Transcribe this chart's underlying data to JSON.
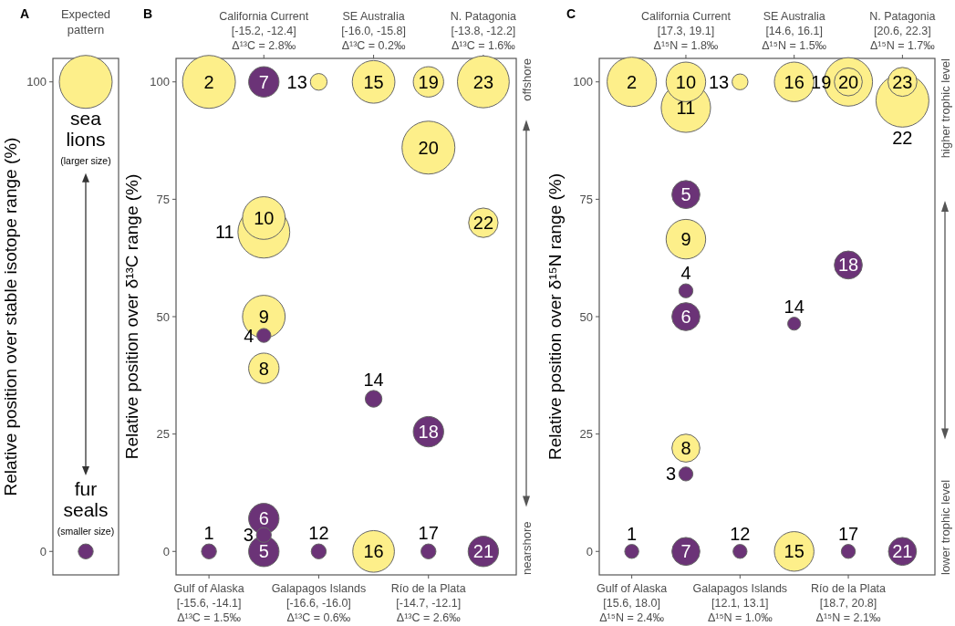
{
  "chart_data": [
    {
      "type": "bubble",
      "title": "A",
      "subtitle": "Expected pattern",
      "ylabel": "Relative position over stable isotope range (%)",
      "categories": [
        null
      ],
      "ylim": [
        -5,
        105
      ],
      "yticks": [
        0,
        100
      ],
      "series": [
        {
          "name": "sea lions",
          "color": "#fdef8a",
          "values": [
            100
          ],
          "sizes": [
            1
          ]
        },
        {
          "name": "fur seals",
          "color": "#6b3377",
          "values": [
            0
          ],
          "sizes": [
            0.08
          ]
        }
      ],
      "annotations": [
        "(larger size)",
        "(smaller size)"
      ]
    },
    {
      "type": "bubble",
      "title": "B",
      "ylabel": "Relative position over δ¹³C range (%)",
      "categories": [
        "Gulf of Alaska\n[-15.6, -14.1]\nΔ¹³C = 1.5‰",
        "California Current\n[-15.2, -12.4]\nΔ¹³C = 2.8‰",
        "Galapagos Islands\n[-16.6, -16.0]\nΔ¹³C = 0.6‰",
        "SE Australia\n[-16.0, -15.8]\nΔ¹³C = 0.2‰",
        "Río de la Plata\n[-14.7, -12.1]\nΔ¹³C = 2.6‰",
        "N. Patagonia\n[-13.8, -12.2]\nΔ¹³C = 1.6‰"
      ],
      "ylim": [
        -5,
        105
      ],
      "yticks": [
        0,
        25,
        50,
        75,
        100
      ],
      "series": [
        {
          "name": "1",
          "color": "#6b3377",
          "values": [
            0,
            null,
            null,
            null,
            null,
            null
          ],
          "sizes": [
            0.08,
            null,
            null,
            null,
            null,
            null
          ]
        },
        {
          "name": "2",
          "color": "#fdef8a",
          "values": [
            100,
            null,
            null,
            null,
            null,
            null
          ],
          "sizes": [
            1,
            null,
            null,
            null,
            null,
            null
          ]
        },
        {
          "name": "3",
          "color": "#6b3377",
          "values": [
            null,
            3.5,
            null,
            null,
            null,
            null
          ],
          "sizes": [
            null,
            0.08,
            null,
            null,
            null,
            null
          ]
        },
        {
          "name": "4",
          "color": "#6b3377",
          "values": [
            null,
            46,
            null,
            null,
            null,
            null
          ],
          "sizes": [
            null,
            0.07,
            null,
            null,
            null,
            null
          ]
        },
        {
          "name": "5",
          "color": "#6b3377",
          "values": [
            null,
            0,
            null,
            null,
            null,
            null
          ],
          "sizes": [
            null,
            0.33,
            null,
            null,
            null,
            null
          ]
        },
        {
          "name": "6",
          "color": "#6b3377",
          "values": [
            null,
            7,
            null,
            null,
            null,
            null
          ],
          "sizes": [
            null,
            0.33,
            null,
            null,
            null,
            null
          ]
        },
        {
          "name": "7",
          "color": "#6b3377",
          "values": [
            null,
            100,
            null,
            null,
            null,
            null
          ],
          "sizes": [
            null,
            0.33,
            null,
            null,
            null,
            null
          ]
        },
        {
          "name": "8",
          "color": "#fdef8a",
          "values": [
            null,
            39,
            null,
            null,
            null,
            null
          ],
          "sizes": [
            null,
            0.33,
            null,
            null,
            null,
            null
          ]
        },
        {
          "name": "9",
          "color": "#fdef8a",
          "values": [
            null,
            50,
            null,
            null,
            null,
            null
          ],
          "sizes": [
            null,
            0.65,
            null,
            null,
            null,
            null
          ]
        },
        {
          "name": "10",
          "color": "#fdef8a",
          "values": [
            null,
            71,
            null,
            null,
            null,
            null
          ],
          "sizes": [
            null,
            0.65,
            null,
            null,
            null,
            null
          ]
        },
        {
          "name": "11",
          "color": "#fdef8a",
          "values": [
            null,
            68,
            null,
            null,
            null,
            null
          ],
          "sizes": [
            null,
            0.96,
            null,
            null,
            null,
            null
          ]
        },
        {
          "name": "12",
          "color": "#6b3377",
          "values": [
            null,
            null,
            0,
            null,
            null,
            null
          ],
          "sizes": [
            null,
            null,
            0.08,
            null,
            null,
            null
          ]
        },
        {
          "name": "13",
          "color": "#fdef8a",
          "values": [
            null,
            null,
            100,
            null,
            null,
            null
          ],
          "sizes": [
            null,
            null,
            0.1,
            null,
            null,
            null
          ]
        },
        {
          "name": "14",
          "color": "#6b3377",
          "values": [
            null,
            null,
            null,
            32.5,
            null,
            null
          ],
          "sizes": [
            null,
            null,
            null,
            0.1,
            null,
            null
          ]
        },
        {
          "name": "15",
          "color": "#fdef8a",
          "values": [
            null,
            null,
            null,
            100,
            null,
            null
          ],
          "sizes": [
            null,
            null,
            null,
            0.65,
            null,
            null
          ]
        },
        {
          "name": "16",
          "color": "#fdef8a",
          "values": [
            null,
            null,
            null,
            0,
            null,
            null
          ],
          "sizes": [
            null,
            null,
            null,
            0.62,
            null,
            null
          ]
        },
        {
          "name": "17",
          "color": "#6b3377",
          "values": [
            null,
            null,
            null,
            null,
            0,
            null
          ],
          "sizes": [
            null,
            null,
            null,
            null,
            0.08,
            null
          ]
        },
        {
          "name": "18",
          "color": "#6b3377",
          "values": [
            null,
            null,
            null,
            null,
            25.5,
            null
          ],
          "sizes": [
            null,
            null,
            null,
            null,
            0.33,
            null
          ]
        },
        {
          "name": "19",
          "color": "#fdef8a",
          "values": [
            null,
            null,
            null,
            null,
            100,
            null
          ],
          "sizes": [
            null,
            null,
            null,
            null,
            0.33,
            null
          ]
        },
        {
          "name": "20",
          "color": "#fdef8a",
          "values": [
            null,
            null,
            null,
            null,
            86,
            null
          ],
          "sizes": [
            null,
            null,
            null,
            null,
            1,
            null
          ]
        },
        {
          "name": "21",
          "color": "#6b3377",
          "values": [
            null,
            null,
            null,
            null,
            null,
            0
          ],
          "sizes": [
            null,
            null,
            null,
            null,
            null,
            0.33
          ]
        },
        {
          "name": "22",
          "color": "#fdef8a",
          "values": [
            null,
            null,
            null,
            null,
            null,
            70
          ],
          "sizes": [
            null,
            null,
            null,
            null,
            null,
            0.31
          ]
        },
        {
          "name": "23",
          "color": "#fdef8a",
          "values": [
            null,
            null,
            null,
            null,
            null,
            100
          ],
          "sizes": [
            null,
            null,
            null,
            null,
            null,
            0.96
          ]
        }
      ],
      "annotations": [
        "offshore",
        "nearshore"
      ]
    },
    {
      "type": "bubble",
      "title": "C",
      "ylabel": "Relative position over δ¹⁵N range (%)",
      "categories": [
        "Gulf of Alaska\n[15.6, 18.0]\nΔ¹⁵N = 2.4‰",
        "California Current\n[17.3, 19.1]\nΔ¹⁵N = 1.8‰",
        "Galapagos Islands\n[12.1, 13.1]\nΔ¹⁵N = 1.0‰",
        "SE Australia\n[14.6, 16.1]\nΔ¹⁵N = 1.5‰",
        "Río de la Plata\n[18.7, 20.8]\nΔ¹⁵N = 2.1‰",
        "N. Patagonia\n[20.6, 22.3]\nΔ¹⁵N = 1.7‰"
      ],
      "ylim": [
        -5,
        105
      ],
      "yticks": [
        0,
        25,
        50,
        75,
        100
      ],
      "series": [
        {
          "name": "1",
          "color": "#6b3377",
          "values": [
            0,
            null,
            null,
            null,
            null,
            null
          ],
          "sizes": [
            0.07,
            null,
            null,
            null,
            null,
            null
          ]
        },
        {
          "name": "2",
          "color": "#fdef8a",
          "values": [
            100,
            null,
            null,
            null,
            null,
            null
          ],
          "sizes": [
            0.87,
            null,
            null,
            null,
            null,
            null
          ]
        },
        {
          "name": "3",
          "color": "#6b3377",
          "values": [
            null,
            16.5,
            null,
            null,
            null,
            null
          ],
          "sizes": [
            null,
            0.07,
            null,
            null,
            null,
            null
          ]
        },
        {
          "name": "4",
          "color": "#6b3377",
          "values": [
            null,
            55.5,
            null,
            null,
            null,
            null
          ],
          "sizes": [
            null,
            0.07,
            null,
            null,
            null,
            null
          ]
        },
        {
          "name": "5",
          "color": "#6b3377",
          "values": [
            null,
            76,
            null,
            null,
            null,
            null
          ],
          "sizes": [
            null,
            0.28,
            null,
            null,
            null,
            null
          ]
        },
        {
          "name": "6",
          "color": "#6b3377",
          "values": [
            null,
            50,
            null,
            null,
            null,
            null
          ],
          "sizes": [
            null,
            0.28,
            null,
            null,
            null,
            null
          ]
        },
        {
          "name": "7",
          "color": "#6b3377",
          "values": [
            null,
            0,
            null,
            null,
            null,
            null
          ],
          "sizes": [
            null,
            0.28,
            null,
            null,
            null,
            null
          ]
        },
        {
          "name": "8",
          "color": "#fdef8a",
          "values": [
            null,
            22,
            null,
            null,
            null,
            null
          ],
          "sizes": [
            null,
            0.28,
            null,
            null,
            null,
            null
          ]
        },
        {
          "name": "9",
          "color": "#fdef8a",
          "values": [
            null,
            66.5,
            null,
            null,
            null,
            null
          ],
          "sizes": [
            null,
            0.56,
            null,
            null,
            null,
            null
          ]
        },
        {
          "name": "10",
          "color": "#fdef8a",
          "values": [
            null,
            100,
            null,
            null,
            null,
            null
          ],
          "sizes": [
            null,
            0.56,
            null,
            null,
            null,
            null
          ]
        },
        {
          "name": "11",
          "color": "#fdef8a",
          "values": [
            null,
            94.5,
            null,
            null,
            null,
            null
          ],
          "sizes": [
            null,
            0.87,
            null,
            null,
            null,
            null
          ]
        },
        {
          "name": "12",
          "color": "#6b3377",
          "values": [
            null,
            null,
            0,
            null,
            null,
            null
          ],
          "sizes": [
            null,
            null,
            0.07,
            null,
            null,
            null
          ]
        },
        {
          "name": "13",
          "color": "#fdef8a",
          "values": [
            null,
            null,
            100,
            null,
            null,
            null
          ],
          "sizes": [
            null,
            null,
            0.09,
            null,
            null,
            null
          ]
        },
        {
          "name": "14",
          "color": "#6b3377",
          "values": [
            null,
            null,
            null,
            48.5,
            null,
            null
          ],
          "sizes": [
            null,
            null,
            null,
            0.06,
            null,
            null
          ]
        },
        {
          "name": "15",
          "color": "#fdef8a",
          "values": [
            null,
            null,
            null,
            0,
            null,
            null
          ],
          "sizes": [
            null,
            null,
            null,
            0.56,
            null,
            null
          ]
        },
        {
          "name": "16",
          "color": "#fdef8a",
          "values": [
            null,
            null,
            null,
            100,
            null,
            null
          ],
          "sizes": [
            null,
            null,
            null,
            0.56,
            null,
            null
          ]
        },
        {
          "name": "17",
          "color": "#6b3377",
          "values": [
            null,
            null,
            null,
            null,
            0,
            null
          ],
          "sizes": [
            null,
            null,
            null,
            null,
            0.07,
            null
          ]
        },
        {
          "name": "18",
          "color": "#6b3377",
          "values": [
            null,
            null,
            null,
            null,
            61,
            null
          ],
          "sizes": [
            null,
            null,
            null,
            null,
            0.28,
            null
          ]
        },
        {
          "name": "19",
          "color": "#fdef8a",
          "values": [
            null,
            null,
            null,
            null,
            100,
            null
          ],
          "sizes": [
            null,
            null,
            null,
            null,
            0.28,
            null
          ]
        },
        {
          "name": "20",
          "color": "#fdef8a",
          "values": [
            null,
            null,
            null,
            null,
            100,
            null
          ],
          "sizes": [
            null,
            null,
            null,
            null,
            0.84,
            null
          ]
        },
        {
          "name": "21",
          "color": "#6b3377",
          "values": [
            null,
            null,
            null,
            null,
            null,
            0
          ],
          "sizes": [
            null,
            null,
            null,
            null,
            null,
            0.28
          ]
        },
        {
          "name": "22",
          "color": "#fdef8a",
          "values": [
            null,
            null,
            null,
            null,
            null,
            96
          ],
          "sizes": [
            null,
            null,
            null,
            null,
            null,
            1
          ]
        },
        {
          "name": "23",
          "color": "#fdef8a",
          "values": [
            null,
            null,
            null,
            null,
            null,
            100
          ],
          "sizes": [
            null,
            null,
            null,
            null,
            null,
            0.3
          ]
        }
      ],
      "annotations": [
        "higher trophic level",
        "lower trophic level"
      ]
    }
  ]
}
